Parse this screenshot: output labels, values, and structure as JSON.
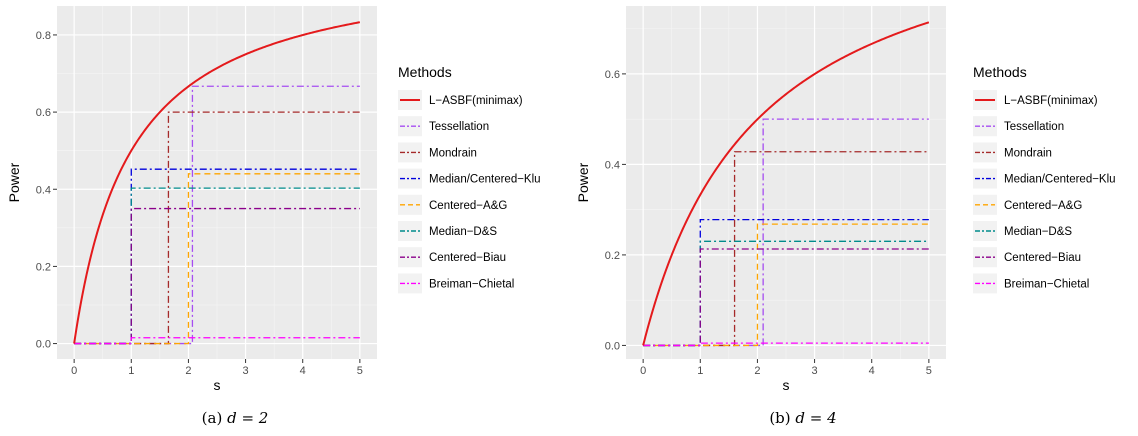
{
  "legend_title": "Methods",
  "methods": [
    {
      "name": "L−ASBF(minimax)",
      "color": "#e41a1c",
      "dash": "solid"
    },
    {
      "name": "Tessellation",
      "color": "#a64df2",
      "dash": "dashdot"
    },
    {
      "name": "Mondrain",
      "color": "#a52a2a",
      "dash": "dashdot"
    },
    {
      "name": "Median/Centered−Klu",
      "color": "#0000dd",
      "dash": "dashdot"
    },
    {
      "name": "Centered−A&G",
      "color": "#ffa500",
      "dash": "dashed"
    },
    {
      "name": "Median−D&S",
      "color": "#008b8b",
      "dash": "dashdot"
    },
    {
      "name": "Centered−Biau",
      "color": "#8b008b",
      "dash": "dashdot"
    },
    {
      "name": "Breiman−Chietal",
      "color": "#ff00ff",
      "dash": "dashdot"
    }
  ],
  "chart_data": [
    {
      "type": "line",
      "caption_prefix": "(a)",
      "caption_math": "d = 2",
      "xlabel": "s",
      "ylabel": "Power",
      "xlim": [
        -0.3,
        5.3
      ],
      "ylim": [
        -0.04,
        0.875
      ],
      "xticks": [
        0,
        1,
        2,
        3,
        4,
        5
      ],
      "yticks": [
        0.0,
        0.2,
        0.4,
        0.6,
        0.8
      ],
      "ytick_labels": [
        "0.0",
        "0.2",
        "0.4",
        "0.6",
        "0.8"
      ],
      "curve": {
        "series": "L−ASBF(minimax)",
        "max": 1.0,
        "k": 0.36,
        "x_start": 0,
        "x_end": 5,
        "values_at_ticks": [
          0.0,
          0.5,
          0.668,
          0.752,
          0.8,
          0.833
        ]
      },
      "step_series": [
        {
          "name": "Tessellation",
          "start_x": 2.07,
          "level": 0.667
        },
        {
          "name": "Mondrain",
          "start_x": 1.65,
          "level": 0.6
        },
        {
          "name": "Median/Centered−Klu",
          "start_x": 1.0,
          "level": 0.452
        },
        {
          "name": "Centered−A&G",
          "start_x": 2.0,
          "level": 0.44
        },
        {
          "name": "Median−D&S",
          "start_x": 1.0,
          "level": 0.403
        },
        {
          "name": "Centered−Biau",
          "start_x": 1.0,
          "level": 0.35
        },
        {
          "name": "Breiman−Chietal",
          "start_x": 1.0,
          "level": 0.015
        }
      ]
    },
    {
      "type": "line",
      "caption_prefix": "(b)",
      "caption_math": "d = 4",
      "xlabel": "s",
      "ylabel": "Power",
      "xlim": [
        -0.3,
        5.3
      ],
      "ylim": [
        -0.03,
        0.75
      ],
      "xticks": [
        0,
        1,
        2,
        3,
        4,
        5
      ],
      "yticks": [
        0.0,
        0.2,
        0.4,
        0.6
      ],
      "ytick_labels": [
        "0.0",
        "0.2",
        "0.4",
        "0.6"
      ],
      "curve": {
        "series": "L−ASBF(minimax)",
        "max": 1.0,
        "k": 0.25,
        "x_start": 0,
        "x_end": 5,
        "values_at_ticks": [
          0.0,
          0.333,
          0.5,
          0.6,
          0.667,
          0.714
        ]
      },
      "step_series": [
        {
          "name": "Tessellation",
          "start_x": 2.1,
          "level": 0.5
        },
        {
          "name": "Mondrain",
          "start_x": 1.6,
          "level": 0.428
        },
        {
          "name": "Median/Centered−Klu",
          "start_x": 1.0,
          "level": 0.278
        },
        {
          "name": "Centered−A&G",
          "start_x": 2.0,
          "level": 0.268
        },
        {
          "name": "Median−D&S",
          "start_x": 1.0,
          "level": 0.23
        },
        {
          "name": "Centered−Biau",
          "start_x": 1.0,
          "level": 0.213
        },
        {
          "name": "Breiman−Chietal",
          "start_x": 1.0,
          "level": 0.005
        }
      ]
    }
  ]
}
